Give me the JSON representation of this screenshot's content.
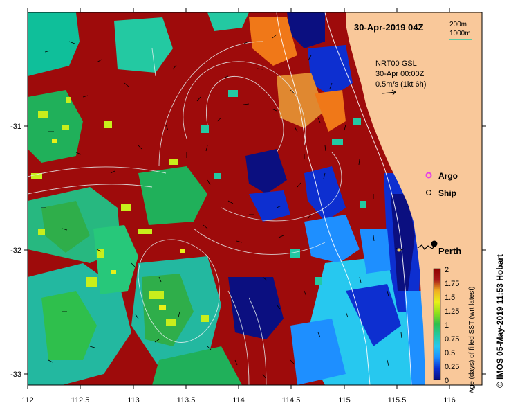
{
  "map": {
    "timestamp_label": "30-Apr-2019 04Z",
    "depth_legend": [
      "200m",
      "1000m"
    ],
    "current_note": [
      "NRT00 GSL",
      "30-Apr 00:00Z",
      "0.5m/s (1kt 6h)"
    ],
    "markers": {
      "argo": "Argo",
      "ship": "Ship"
    },
    "city": "Perth",
    "credit": "© IMOS 05-May-2019 11:53 Hobart",
    "x_ticks": [
      "112",
      "112.5",
      "113",
      "113.5",
      "114",
      "114.5",
      "115",
      "115.5",
      "116"
    ],
    "y_ticks": [
      "-31",
      "-32",
      "-33"
    ],
    "colorbar": {
      "title": "Age (days) of filled SST (wrt latest)",
      "ticks": [
        "0",
        "0.25",
        "0.5",
        "0.75",
        "1",
        "1.25",
        "1.5",
        "1.75",
        "2"
      ],
      "colors": [
        "#0b0f80",
        "#0d2fd0",
        "#1e8fff",
        "#27c8ef",
        "#23c9a2",
        "#2fbf4c",
        "#8fe01a",
        "#e8f018",
        "#f0b020",
        "#a81818",
        "#8e0000"
      ]
    },
    "colors": {
      "land": "#f9c89a",
      "old_sst": "#9e0b0b",
      "argo": "#e640e6",
      "contour": "#ffffff"
    }
  }
}
